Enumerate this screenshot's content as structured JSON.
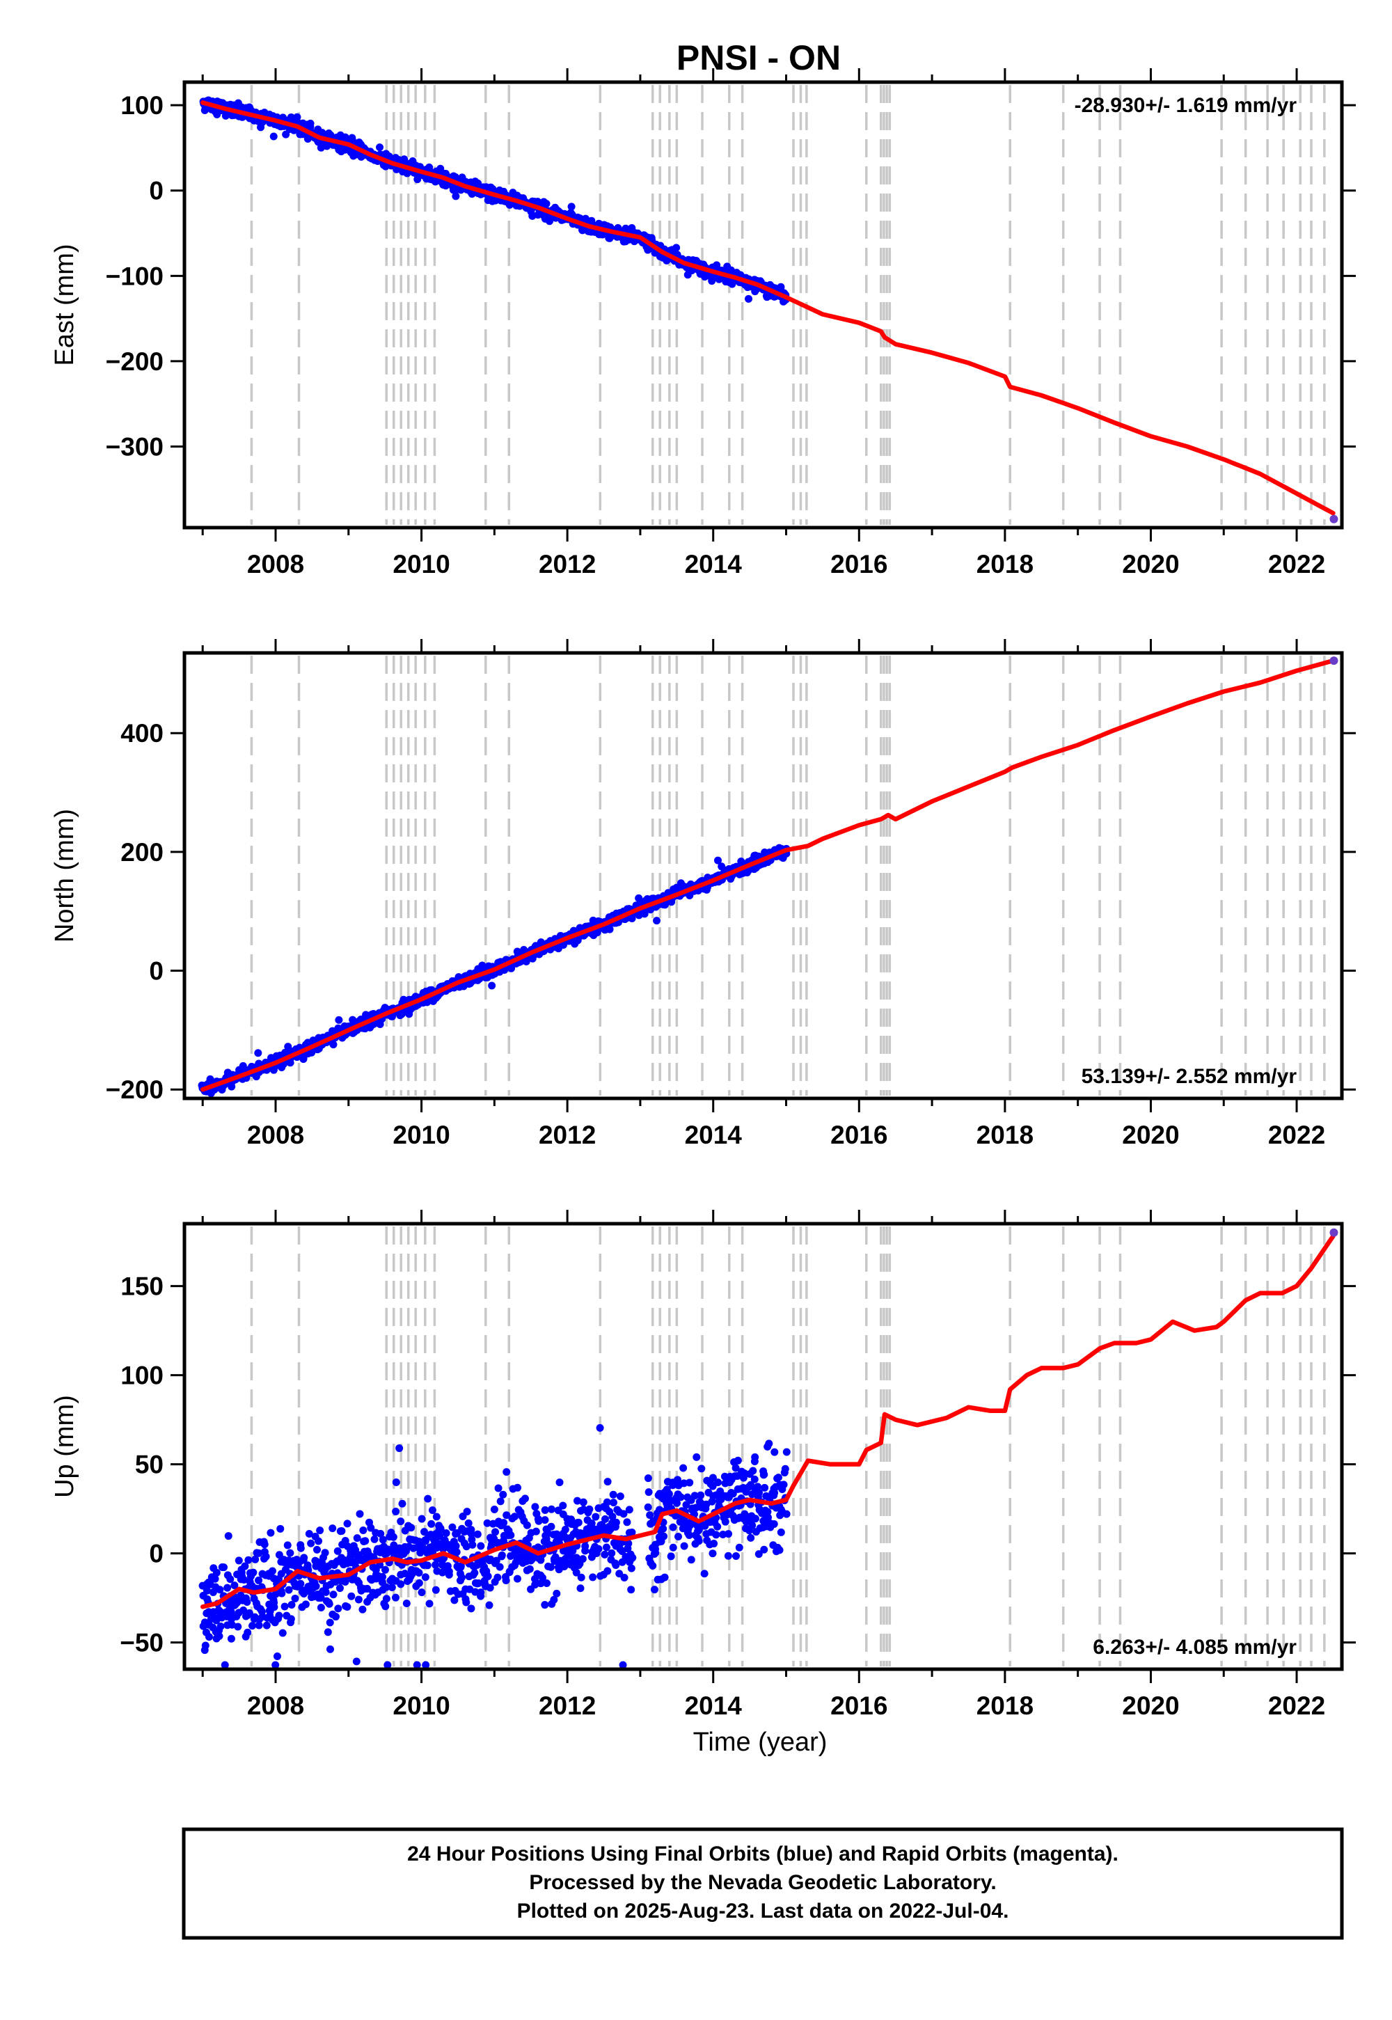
{
  "title": "PNSI - ON",
  "xlabel": "Time (year)",
  "footer": {
    "line1": "24 Hour Positions Using Final Orbits (blue) and Rapid Orbits (magenta).",
    "line2": "Processed by the Nevada Geodetic Laboratory.",
    "line3": "Plotted on 2025-Aug-23. Last data on 2022-Jul-04."
  },
  "colors": {
    "final_orbit_points": "#0000ff",
    "model_line": "#ff0000",
    "last_point": "#6a3cc8",
    "event_lines": "#c8c8c8",
    "frame": "#000000"
  },
  "chart_data": [
    {
      "type": "scatter",
      "panel": "east",
      "ylabel": "East (mm)",
      "xlim": [
        2006.75,
        2022.62
      ],
      "ylim": [
        -395,
        127
      ],
      "xticks": [
        2008,
        2010,
        2012,
        2014,
        2016,
        2018,
        2020,
        2022
      ],
      "yticks": [
        100,
        0,
        -100,
        -200,
        -300
      ],
      "rate_label": "-28.930+/- 1.619 mm/yr",
      "rate_position": "top-right",
      "grid": false,
      "data_range": [
        2007.0,
        2015.0
      ],
      "scatter": 4,
      "model_line": {
        "x": [
          2007.0,
          2007.3,
          2007.6,
          2008.0,
          2008.3,
          2008.6,
          2009.0,
          2009.3,
          2009.6,
          2010.0,
          2010.3,
          2010.6,
          2011.0,
          2011.3,
          2011.6,
          2012.0,
          2012.3,
          2012.6,
          2013.0,
          2013.3,
          2013.6,
          2014.0,
          2014.3,
          2014.6,
          2015.0,
          2015.5,
          2016.0,
          2016.3,
          2016.35,
          2016.5,
          2017.0,
          2017.5,
          2018.0,
          2018.07,
          2018.5,
          2019.0,
          2019.5,
          2020.0,
          2020.5,
          2021.0,
          2021.5,
          2022.0,
          2022.5
        ],
        "y": [
          103,
          96,
          90,
          82,
          75,
          62,
          54,
          42,
          32,
          22,
          15,
          5,
          -5,
          -12,
          -20,
          -33,
          -42,
          -48,
          -55,
          -72,
          -85,
          -95,
          -102,
          -110,
          -125,
          -145,
          -155,
          -165,
          -172,
          -180,
          -190,
          -202,
          -218,
          -230,
          -240,
          -255,
          -272,
          -288,
          -300,
          -315,
          -332,
          -355,
          -378
        ]
      },
      "last_point": [
        2022.51,
        -385
      ],
      "events": [
        2007.67,
        2008.32,
        2009.52,
        2009.62,
        2009.72,
        2009.82,
        2009.92,
        2010.05,
        2010.18,
        2010.88,
        2011.2,
        2012.45,
        2013.17,
        2013.27,
        2013.4,
        2013.5,
        2013.85,
        2014.22,
        2014.4,
        2015.1,
        2015.2,
        2015.28,
        2016.1,
        2016.3,
        2016.34,
        2016.38,
        2016.42,
        2018.07,
        2018.8,
        2019.3,
        2019.58,
        2020.97,
        2021.3,
        2021.6,
        2021.82,
        2022.05,
        2022.2,
        2022.38
      ]
    },
    {
      "type": "scatter",
      "panel": "north",
      "ylabel": "North (mm)",
      "xlim": [
        2006.75,
        2022.62
      ],
      "ylim": [
        -215,
        535
      ],
      "xticks": [
        2008,
        2010,
        2012,
        2014,
        2016,
        2018,
        2020,
        2022
      ],
      "yticks": [
        400,
        200,
        0,
        -200
      ],
      "rate_label": "53.139+/- 2.552 mm/yr",
      "rate_position": "bottom-right",
      "grid": false,
      "data_range": [
        2007.0,
        2015.0
      ],
      "scatter": 5,
      "model_line": {
        "x": [
          2007.0,
          2007.5,
          2008.0,
          2008.5,
          2009.0,
          2009.5,
          2010.0,
          2010.5,
          2011.0,
          2011.5,
          2012.0,
          2012.5,
          2013.0,
          2013.5,
          2014.0,
          2014.5,
          2015.0,
          2015.3,
          2015.5,
          2016.0,
          2016.3,
          2016.4,
          2016.5,
          2017.0,
          2017.5,
          2018.0,
          2018.1,
          2018.5,
          2019.0,
          2019.5,
          2020.0,
          2020.5,
          2021.0,
          2021.5,
          2022.0,
          2022.5
        ],
        "y": [
          -200,
          -178,
          -155,
          -128,
          -100,
          -73,
          -48,
          -20,
          2,
          30,
          55,
          78,
          105,
          128,
          152,
          178,
          203,
          210,
          222,
          245,
          255,
          262,
          255,
          285,
          310,
          335,
          342,
          360,
          380,
          405,
          428,
          450,
          470,
          485,
          505,
          522
        ]
      },
      "last_point": [
        2022.51,
        522
      ],
      "events": [
        2007.67,
        2008.32,
        2009.52,
        2009.62,
        2009.72,
        2009.82,
        2009.92,
        2010.05,
        2010.18,
        2010.88,
        2011.2,
        2012.45,
        2013.17,
        2013.27,
        2013.4,
        2013.5,
        2013.85,
        2014.22,
        2014.4,
        2015.1,
        2015.2,
        2015.28,
        2016.1,
        2016.3,
        2016.34,
        2016.38,
        2016.42,
        2018.07,
        2018.8,
        2019.3,
        2019.58,
        2020.97,
        2021.3,
        2021.6,
        2021.82,
        2022.05,
        2022.2,
        2022.38
      ]
    },
    {
      "type": "scatter",
      "panel": "up",
      "ylabel": "Up (mm)",
      "xlim": [
        2006.75,
        2022.62
      ],
      "ylim": [
        -65,
        185
      ],
      "xticks": [
        2008,
        2010,
        2012,
        2014,
        2016,
        2018,
        2020,
        2022
      ],
      "yticks": [
        150,
        100,
        50,
        0,
        -50
      ],
      "rate_label": "6.263+/- 4.085 mm/yr",
      "rate_position": "bottom-right",
      "grid": false,
      "data_range": [
        2007.0,
        2015.0
      ],
      "gap": [
        2012.9,
        2013.1
      ],
      "scatter": 13,
      "model_line": {
        "x": [
          2007.0,
          2007.2,
          2007.5,
          2007.7,
          2008.0,
          2008.3,
          2008.6,
          2009.0,
          2009.3,
          2009.6,
          2009.8,
          2010.0,
          2010.3,
          2010.6,
          2011.0,
          2011.3,
          2011.6,
          2012.0,
          2012.3,
          2012.5,
          2012.8,
          2013.0,
          2013.2,
          2013.3,
          2013.5,
          2013.8,
          2014.0,
          2014.3,
          2014.5,
          2014.8,
          2015.0,
          2015.1,
          2015.3,
          2015.6,
          2016.0,
          2016.1,
          2016.3,
          2016.35,
          2016.5,
          2016.8,
          2017.2,
          2017.5,
          2017.8,
          2018.0,
          2018.07,
          2018.3,
          2018.5,
          2018.8,
          2019.0,
          2019.3,
          2019.5,
          2019.8,
          2020.0,
          2020.3,
          2020.6,
          2020.9,
          2021.0,
          2021.3,
          2021.5,
          2021.8,
          2022.0,
          2022.2,
          2022.4,
          2022.5
        ],
        "y": [
          -30,
          -28,
          -20,
          -22,
          -20,
          -10,
          -14,
          -12,
          -5,
          -3,
          -5,
          -4,
          0,
          -5,
          2,
          6,
          0,
          5,
          8,
          10,
          8,
          10,
          12,
          22,
          24,
          18,
          22,
          28,
          30,
          28,
          30,
          38,
          52,
          50,
          50,
          58,
          62,
          78,
          75,
          72,
          76,
          82,
          80,
          80,
          92,
          100,
          104,
          104,
          106,
          115,
          118,
          118,
          120,
          130,
          125,
          127,
          130,
          142,
          146,
          146,
          150,
          160,
          172,
          178
        ]
      },
      "last_point": [
        2022.51,
        180
      ],
      "events": [
        2007.67,
        2008.32,
        2009.52,
        2009.62,
        2009.72,
        2009.82,
        2009.92,
        2010.05,
        2010.18,
        2010.88,
        2011.2,
        2012.45,
        2013.17,
        2013.27,
        2013.4,
        2013.5,
        2013.85,
        2014.22,
        2014.4,
        2015.1,
        2015.2,
        2015.28,
        2016.1,
        2016.3,
        2016.34,
        2016.38,
        2016.42,
        2018.07,
        2018.8,
        2019.3,
        2019.58,
        2020.97,
        2021.3,
        2021.6,
        2021.82,
        2022.05,
        2022.2,
        2022.38
      ]
    }
  ]
}
